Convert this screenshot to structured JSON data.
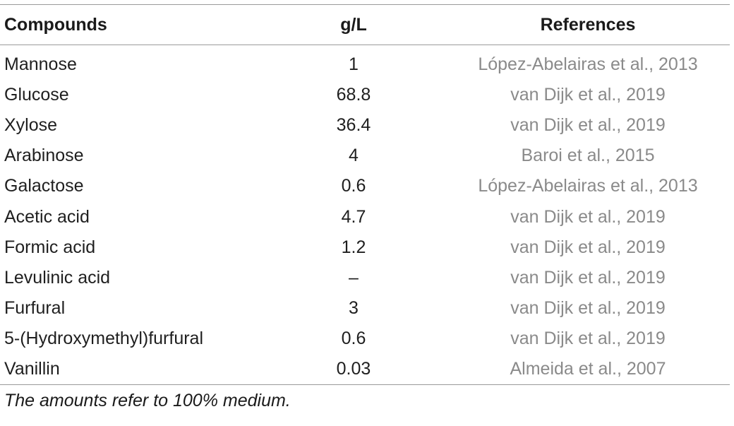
{
  "table": {
    "headers": [
      "Compounds",
      "g/L",
      "References"
    ],
    "rows": [
      [
        "Mannose",
        "1",
        "López-Abelairas et al., 2013"
      ],
      [
        "Glucose",
        "68.8",
        "van Dijk et al., 2019"
      ],
      [
        "Xylose",
        "36.4",
        "van Dijk et al., 2019"
      ],
      [
        "Arabinose",
        "4",
        "Baroi et al., 2015"
      ],
      [
        "Galactose",
        "0.6",
        "López-Abelairas et al., 2013"
      ],
      [
        "Acetic acid",
        "4.7",
        "van Dijk et al., 2019"
      ],
      [
        "Formic acid",
        "1.2",
        "van Dijk et al., 2019"
      ],
      [
        "Levulinic acid",
        "–",
        "van Dijk et al., 2019"
      ],
      [
        "Furfural",
        "3",
        "van Dijk et al., 2019"
      ],
      [
        "5-(Hydroxymethyl)furfural",
        "0.6",
        "van Dijk et al., 2019"
      ],
      [
        "Vanillin",
        "0.03",
        "Almeida et al., 2007"
      ]
    ],
    "footnote": "The amounts refer to 100% medium."
  },
  "colors": {
    "rule": "#9a9a9a",
    "text": "#1a1a1a",
    "reference_text": "#8a8a8a"
  }
}
